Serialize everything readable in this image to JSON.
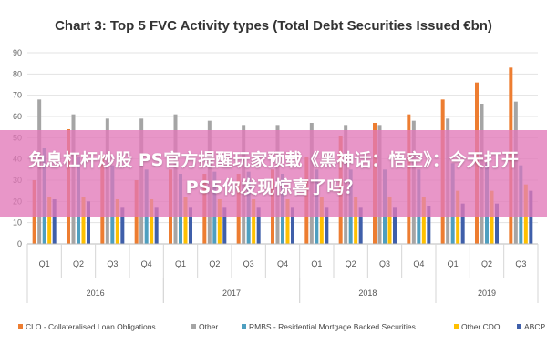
{
  "chart_data": {
    "type": "bar",
    "title": "Chart 3: Top 5 FVC Activity types (Total Debt Securities Issued €bn)",
    "xlabel": "",
    "ylabel": "",
    "ylim": [
      0,
      90
    ],
    "yticks": [
      0,
      10,
      20,
      30,
      40,
      50,
      60,
      70,
      80,
      90
    ],
    "grid": true,
    "legend": "bottom",
    "categories": [
      "Q1",
      "Q2",
      "Q3",
      "Q4",
      "Q1",
      "Q2",
      "Q3",
      "Q4",
      "Q1",
      "Q2",
      "Q3",
      "Q4",
      "Q1",
      "Q2",
      "Q3"
    ],
    "years": [
      {
        "label": "2016",
        "start": 0,
        "end": 3
      },
      {
        "label": "2017",
        "start": 4,
        "end": 7
      },
      {
        "label": "2018",
        "start": 8,
        "end": 11
      },
      {
        "label": "2019",
        "start": 12,
        "end": 14
      }
    ],
    "series": [
      {
        "name": "CLO - Collateralised Loan Obligations",
        "color": "#ED7D31",
        "values": [
          30,
          54,
          42,
          30,
          35,
          33,
          33,
          35,
          41,
          51,
          57,
          61,
          68,
          76,
          83
        ]
      },
      {
        "name": "Other",
        "color": "#A5A5A5",
        "values": [
          68,
          61,
          59,
          59,
          61,
          58,
          56,
          56,
          57,
          56,
          56,
          58,
          59,
          66,
          67
        ]
      },
      {
        "name": "RMBS - Residential Mortgage Backed Securities",
        "color": "#4E9FC0",
        "values": [
          45,
          41,
          37,
          35,
          33,
          34,
          34,
          33,
          35,
          35,
          35,
          35,
          38,
          38,
          37
        ]
      },
      {
        "name": "Other CDO",
        "color": "#FFC000",
        "values": [
          22,
          22,
          21,
          21,
          22,
          21,
          21,
          21,
          22,
          22,
          22,
          22,
          25,
          25,
          28
        ]
      },
      {
        "name": "ABCP",
        "color": "#3F5FAA",
        "values": [
          21,
          20,
          17,
          17,
          17,
          17,
          17,
          17,
          17,
          17,
          17,
          18,
          19,
          19,
          25
        ]
      }
    ]
  },
  "overlay": {
    "text": "免息杠杆炒股 PS官方提醒玩家预载《黑神话：悟空》：今天打开PS5你发现惊喜了吗？"
  }
}
